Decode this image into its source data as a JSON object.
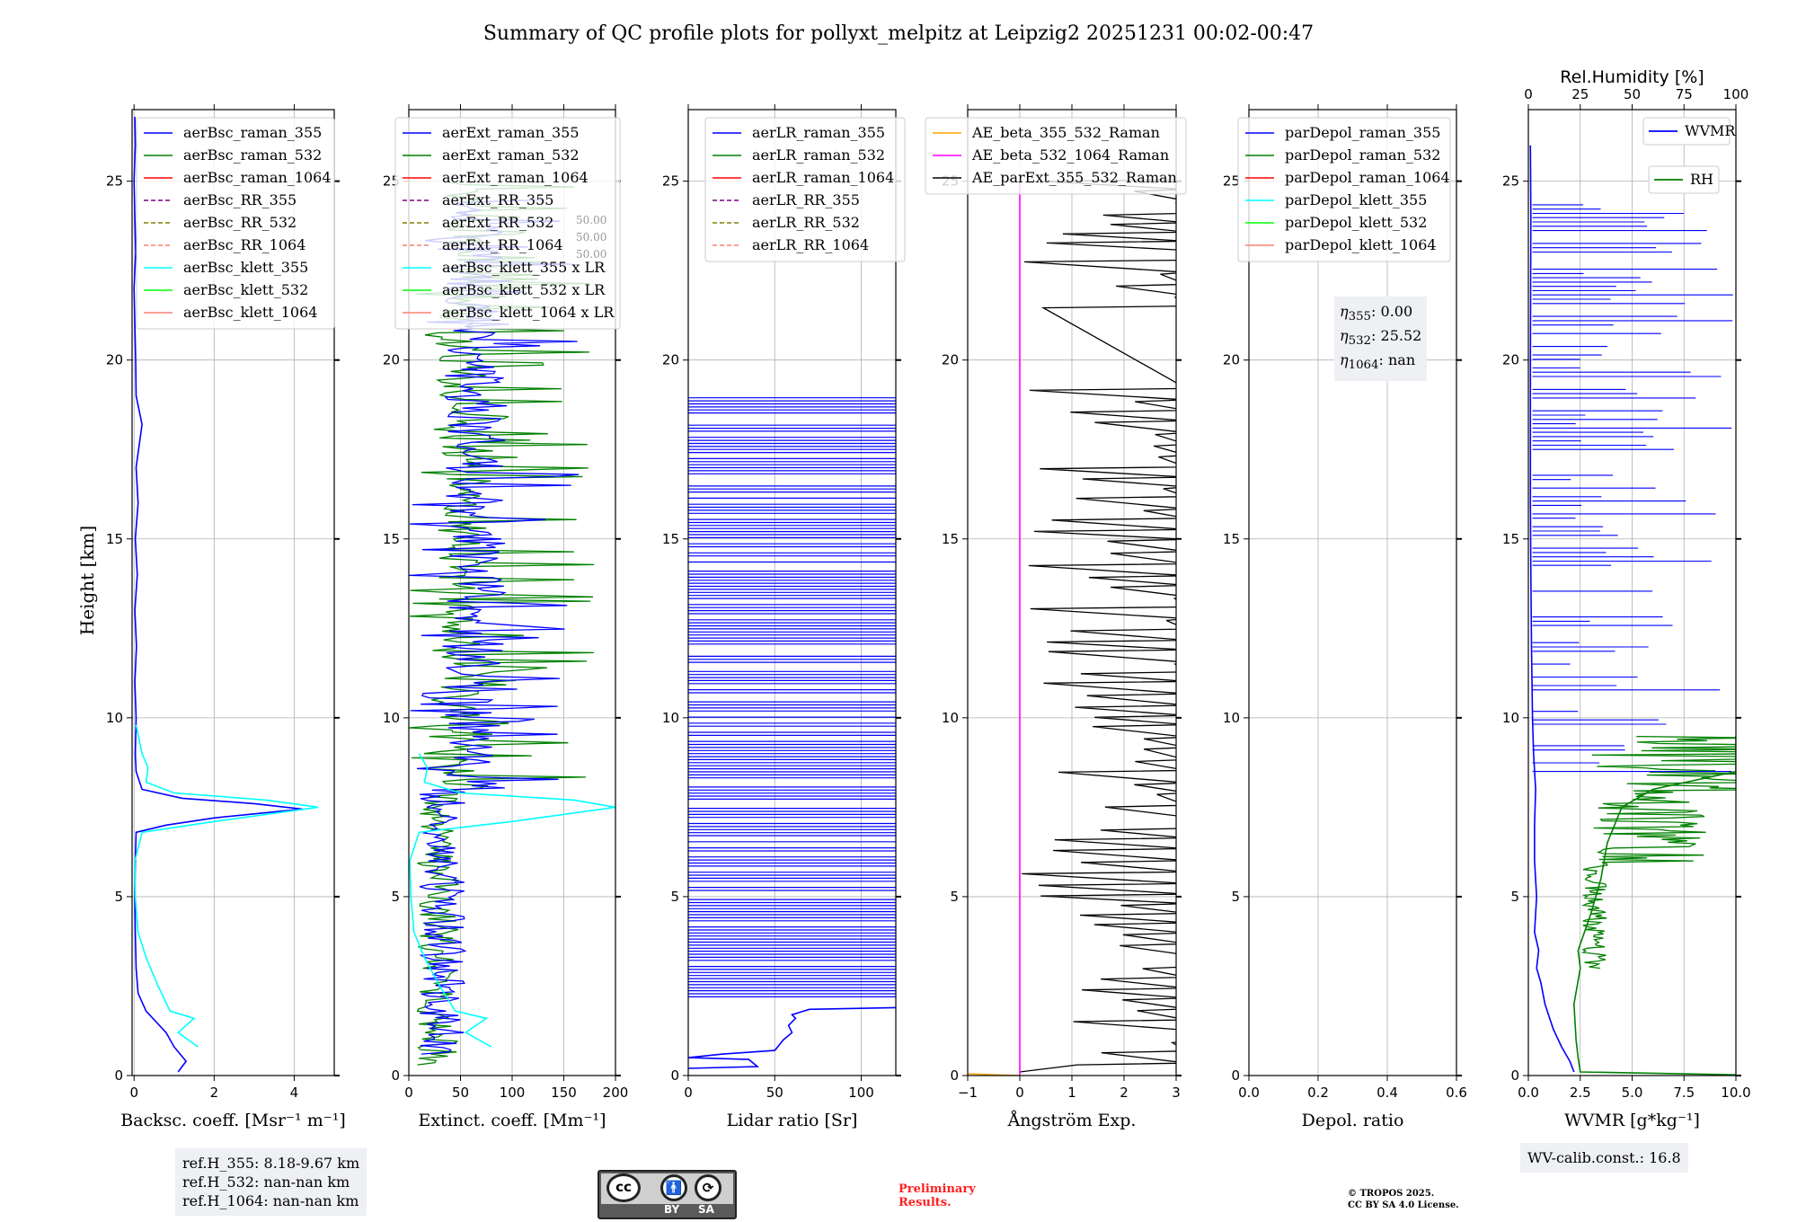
{
  "title": "Summary of QC profile plots for pollyxt_melpitz at Leipzig2 20251231 00:02-00:47",
  "y_label": "Height [km]",
  "y_ticks": [
    "0",
    "5",
    "10",
    "15",
    "20",
    "25"
  ],
  "colors": {
    "blue": "#0000ff",
    "green": "#008000",
    "red": "#ff0000",
    "cyan": "#00ffff",
    "purple": "#800080",
    "olive": "#808000",
    "salmon": "#fa8072",
    "lime": "#00ff00",
    "orange": "#ffa500",
    "magenta": "#ff00ff",
    "black": "#000000"
  },
  "chart_data": [
    {
      "type": "line",
      "xlabel": "Backsc. coeff. [Msr⁻¹ m⁻¹]",
      "xlim": [
        -0.05,
        5
      ],
      "ylim": [
        0,
        27
      ],
      "xticks": [
        0,
        2,
        4
      ],
      "xtick_labels": [
        "0",
        "2",
        "4"
      ],
      "legend": [
        {
          "label": "aerBsc_raman_355",
          "color": "blue",
          "style": "solid"
        },
        {
          "label": "aerBsc_raman_532",
          "color": "green",
          "style": "solid"
        },
        {
          "label": "aerBsc_raman_1064",
          "color": "red",
          "style": "solid"
        },
        {
          "label": "aerBsc_RR_355",
          "color": "purple",
          "style": "dashed"
        },
        {
          "label": "aerBsc_RR_532",
          "color": "olive",
          "style": "dashed"
        },
        {
          "label": "aerBsc_RR_1064",
          "color": "salmon",
          "style": "dashed"
        },
        {
          "label": "aerBsc_klett_355",
          "color": "cyan",
          "style": "solid"
        },
        {
          "label": "aerBsc_klett_532",
          "color": "lime",
          "style": "solid"
        },
        {
          "label": "aerBsc_klett_1064",
          "color": "salmon",
          "style": "solid"
        }
      ],
      "series": [
        {
          "name": "aerBsc_raman_355",
          "color": "blue",
          "points": [
            [
              1.1,
              0.1
            ],
            [
              1.3,
              0.4
            ],
            [
              1.0,
              0.8
            ],
            [
              0.8,
              1.2
            ],
            [
              0.3,
              1.8
            ],
            [
              0.1,
              2.3
            ],
            [
              0.05,
              3
            ],
            [
              0.03,
              4
            ],
            [
              0.02,
              5
            ],
            [
              0.03,
              6
            ],
            [
              0.05,
              6.8
            ],
            [
              0.8,
              7.0
            ],
            [
              2.0,
              7.2
            ],
            [
              4.2,
              7.45
            ],
            [
              3.0,
              7.6
            ],
            [
              1.2,
              7.75
            ],
            [
              0.2,
              8.0
            ],
            [
              0.05,
              8.5
            ],
            [
              0.03,
              9
            ],
            [
              0.05,
              10
            ],
            [
              0.02,
              11
            ],
            [
              0.06,
              12
            ],
            [
              0.02,
              13
            ],
            [
              0.08,
              14
            ],
            [
              0.03,
              15
            ],
            [
              0.1,
              16
            ],
            [
              0.05,
              17
            ],
            [
              0.2,
              18.2
            ],
            [
              0.05,
              19
            ],
            [
              0.04,
              20
            ],
            [
              0.02,
              21
            ],
            [
              0.0,
              22
            ],
            [
              0.04,
              23
            ],
            [
              0.02,
              24
            ],
            [
              0.0,
              25
            ],
            [
              0.03,
              26
            ],
            [
              0.02,
              26.8
            ]
          ]
        },
        {
          "name": "aerBsc_klett_355",
          "color": "cyan",
          "points": [
            [
              1.6,
              0.8
            ],
            [
              1.1,
              1.2
            ],
            [
              1.5,
              1.6
            ],
            [
              0.9,
              1.8
            ],
            [
              0.6,
              2.5
            ],
            [
              0.3,
              3.3
            ],
            [
              0.1,
              4
            ],
            [
              0.03,
              5
            ],
            [
              0.02,
              6
            ],
            [
              0.2,
              6.8
            ],
            [
              2.0,
              7.1
            ],
            [
              4.6,
              7.5
            ],
            [
              3.3,
              7.7
            ],
            [
              1.0,
              7.9
            ],
            [
              0.3,
              8.2
            ],
            [
              0.35,
              8.6
            ],
            [
              0.2,
              9.0
            ],
            [
              0.05,
              9.8
            ]
          ]
        }
      ],
      "annotations": [
        "ref.H_355: 8.18-9.67 km",
        "ref.H_532: nan-nan km",
        "ref.H_1064: nan-nan km"
      ]
    },
    {
      "type": "line",
      "xlabel": "Extinct. coeff. [Mm⁻¹]",
      "xlim": [
        0,
        200
      ],
      "ylim": [
        0,
        27
      ],
      "xticks": [
        0,
        50,
        100,
        150,
        200
      ],
      "xtick_labels": [
        "0",
        "50",
        "100",
        "150",
        "200"
      ],
      "legend": [
        {
          "label": "aerExt_raman_355",
          "color": "blue",
          "style": "solid"
        },
        {
          "label": "aerExt_raman_532",
          "color": "green",
          "style": "solid"
        },
        {
          "label": "aerExt_raman_1064",
          "color": "red",
          "style": "solid"
        },
        {
          "label": "aerExt_RR_355",
          "color": "purple",
          "style": "dashed"
        },
        {
          "label": "aerExt_RR_532",
          "color": "olive",
          "style": "dashed"
        },
        {
          "label": "aerExt_RR_1064",
          "color": "salmon",
          "style": "dashed"
        },
        {
          "label": "aerBsc_klett_355 x LR",
          "color": "cyan",
          "style": "solid"
        },
        {
          "label": "aerBsc_klett_532 x LR",
          "color": "lime",
          "style": "solid"
        },
        {
          "label": "aerBsc_klett_1064 x LR",
          "color": "salmon",
          "style": "solid"
        }
      ],
      "lr_labels": [
        "50.00",
        "50.00",
        "50.00"
      ],
      "series": [
        {
          "name": "aerBsc_klett_355 x LR",
          "color": "cyan",
          "points": [
            [
              80,
              0.8
            ],
            [
              55,
              1.2
            ],
            [
              75,
              1.6
            ],
            [
              45,
              1.8
            ],
            [
              30,
              2.5
            ],
            [
              15,
              3.3
            ],
            [
              5,
              4
            ],
            [
              2,
              5
            ],
            [
              1,
              6
            ],
            [
              10,
              6.8
            ],
            [
              100,
              7.1
            ],
            [
              200,
              7.5
            ],
            [
              160,
              7.7
            ],
            [
              50,
              7.9
            ],
            [
              15,
              8.2
            ],
            [
              18,
              8.6
            ],
            [
              10,
              9.0
            ]
          ]
        }
      ]
    },
    {
      "type": "line",
      "xlabel": "Lidar ratio [Sr]",
      "xlim": [
        0,
        120
      ],
      "ylim": [
        0,
        27
      ],
      "xticks": [
        0,
        50,
        100
      ],
      "xtick_labels": [
        "0",
        "50",
        "100"
      ],
      "legend": [
        {
          "label": "aerLR_raman_355",
          "color": "blue",
          "style": "solid"
        },
        {
          "label": "aerLR_raman_532",
          "color": "green",
          "style": "solid"
        },
        {
          "label": "aerLR_raman_1064",
          "color": "red",
          "style": "solid"
        },
        {
          "label": "aerLR_RR_355",
          "color": "purple",
          "style": "dashed"
        },
        {
          "label": "aerLR_RR_532",
          "color": "olive",
          "style": "dashed"
        },
        {
          "label": "aerLR_RR_1064",
          "color": "salmon",
          "style": "dashed"
        }
      ],
      "series": [
        {
          "name": "aerLR_raman_355",
          "color": "blue",
          "points": [
            [
              0,
              0.2
            ],
            [
              40,
              0.25
            ],
            [
              35,
              0.45
            ],
            [
              0,
              0.5
            ],
            [
              20,
              0.6
            ],
            [
              50,
              0.7
            ],
            [
              55,
              1.0
            ],
            [
              60,
              1.2
            ],
            [
              58,
              1.4
            ],
            [
              62,
              1.6
            ],
            [
              60,
              1.7
            ],
            [
              70,
              1.85
            ],
            [
              120,
              1.9
            ]
          ]
        }
      ]
    },
    {
      "type": "line",
      "xlabel": "Ångström Exp.",
      "xlim": [
        -1,
        3
      ],
      "ylim": [
        0,
        27
      ],
      "xticks": [
        -1,
        0,
        1,
        2,
        3
      ],
      "xtick_labels": [
        "−1",
        "0",
        "1",
        "2",
        "3"
      ],
      "legend": [
        {
          "label": "AE_beta_355_532_Raman",
          "color": "orange",
          "style": "solid"
        },
        {
          "label": "AE_beta_532_1064_Raman",
          "color": "magenta",
          "style": "solid"
        },
        {
          "label": "AE_parExt_355_532_Raman",
          "color": "black",
          "style": "solid"
        }
      ],
      "series": [
        {
          "name": "AE_beta_532_1064_Raman",
          "color": "magenta",
          "points": [
            [
              0,
              0
            ],
            [
              0,
              25
            ]
          ]
        },
        {
          "name": "AE_beta_355_532_Raman",
          "color": "orange",
          "points": [
            [
              -1,
              0.05
            ],
            [
              -0.5,
              0.02
            ],
            [
              0,
              0
            ]
          ]
        }
      ]
    },
    {
      "type": "line",
      "xlabel": "Depol. ratio",
      "xlim": [
        0,
        0.6
      ],
      "ylim": [
        0,
        27
      ],
      "xticks": [
        0,
        0.2,
        0.4,
        0.6
      ],
      "xtick_labels": [
        "0.0",
        "0.2",
        "0.4",
        "0.6"
      ],
      "legend": [
        {
          "label": "parDepol_raman_355",
          "color": "blue",
          "style": "solid"
        },
        {
          "label": "parDepol_raman_532",
          "color": "green",
          "style": "solid"
        },
        {
          "label": "parDepol_raman_1064",
          "color": "red",
          "style": "solid"
        },
        {
          "label": "parDepol_klett_355",
          "color": "cyan",
          "style": "solid"
        },
        {
          "label": "parDepol_klett_532",
          "color": "lime",
          "style": "solid"
        },
        {
          "label": "parDepol_klett_1064",
          "color": "salmon",
          "style": "solid"
        }
      ],
      "annotations": [
        {
          "sym": "η",
          "sub": "355",
          "value": ": 0.00"
        },
        {
          "sym": "η",
          "sub": "532",
          "value": ": 25.52"
        },
        {
          "sym": "η",
          "sub": "1064",
          "value": ": nan"
        }
      ]
    },
    {
      "type": "line",
      "xlabel": "WVMR [g*kg⁻¹]",
      "xlim": [
        0,
        10
      ],
      "ylim": [
        0,
        27
      ],
      "xticks": [
        0,
        2.5,
        5,
        7.5,
        10
      ],
      "xtick_labels": [
        "0.0",
        "2.5",
        "5.0",
        "7.5",
        "10.0"
      ],
      "top_xlabel": "Rel.Humidity [%]",
      "top_xlim": [
        0,
        100
      ],
      "top_xticks": [
        0,
        25,
        50,
        75,
        100
      ],
      "top_xtick_labels": [
        "0",
        "25",
        "50",
        "75",
        "100"
      ],
      "legend": [
        {
          "label": "WVMR",
          "color": "blue",
          "style": "solid"
        },
        {
          "label": "RH",
          "color": "green",
          "style": "solid"
        }
      ],
      "series": [
        {
          "name": "WVMR",
          "color": "blue",
          "units": "g/kg",
          "points": [
            [
              2.2,
              0.1
            ],
            [
              2.0,
              0.4
            ],
            [
              1.6,
              0.8
            ],
            [
              1.2,
              1.3
            ],
            [
              0.8,
              2.0
            ],
            [
              0.6,
              2.6
            ],
            [
              0.4,
              3.0
            ],
            [
              0.5,
              3.5
            ],
            [
              0.3,
              4.0
            ],
            [
              0.4,
              5
            ],
            [
              0.3,
              6
            ],
            [
              0.3,
              7
            ],
            [
              0.35,
              8
            ],
            [
              0.25,
              9
            ],
            [
              0.2,
              10
            ],
            [
              0.15,
              12
            ],
            [
              0.12,
              14
            ],
            [
              0.1,
              16
            ],
            [
              0.1,
              20
            ],
            [
              0.12,
              24
            ],
            [
              0.1,
              26
            ]
          ]
        },
        {
          "name": "RH",
          "color": "green",
          "units": "%",
          "points": [
            [
              100,
              0.02
            ],
            [
              25,
              0.1
            ],
            [
              24,
              0.5
            ],
            [
              23,
              1.0
            ],
            [
              22,
              2.0
            ],
            [
              25,
              3.0
            ],
            [
              24,
              3.5
            ],
            [
              30,
              4.5
            ],
            [
              35,
              5.5
            ],
            [
              38,
              6.5
            ],
            [
              45,
              7.5
            ],
            [
              60,
              8.0
            ],
            [
              100,
              8.5
            ],
            [
              100,
              9.5
            ]
          ]
        }
      ],
      "annotations": [
        "WV-calib.const.: 16.8"
      ]
    }
  ],
  "footer": {
    "cc_by": "BY",
    "cc_sa": "SA",
    "cc_mark": "cc",
    "preliminary_1": "Preliminary",
    "preliminary_2": "Results.",
    "copyright_1": "© TROPOS 2025.",
    "copyright_2": "CC BY SA 4.0 License."
  }
}
